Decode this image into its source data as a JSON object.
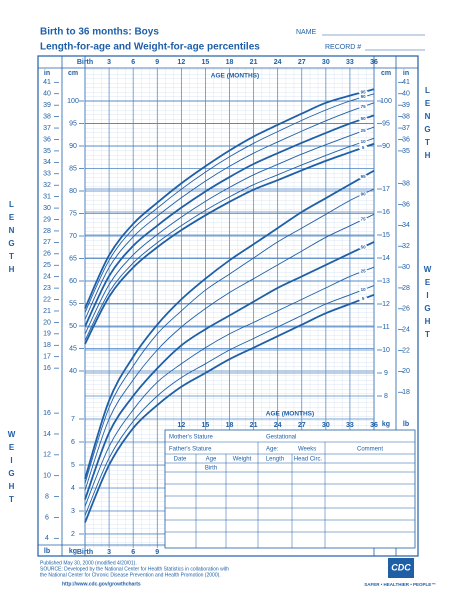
{
  "header": {
    "title": "Birth to 36 months: Boys",
    "subtitle": "Length-for-age and Weight-for-age percentiles",
    "name_label": "NAME",
    "record_label": "RECORD #"
  },
  "chart_data": [
    {
      "type": "line",
      "side_label": "LENGTH",
      "x_label": "AGE (MONTHS)",
      "x": [
        0,
        3,
        6,
        9,
        12,
        15,
        18,
        21,
        24,
        27,
        30,
        33,
        36
      ],
      "xlim": [
        0,
        36
      ],
      "xticks": [
        {
          "value": 0,
          "label": "Birth"
        },
        3,
        6,
        9,
        12,
        15,
        18,
        21,
        24,
        27,
        30,
        33,
        36
      ],
      "axes": [
        {
          "label": "cm",
          "side": "left",
          "lim": [
            40,
            104
          ],
          "ticks": [
            40,
            45,
            50,
            55,
            60,
            65,
            70,
            75,
            80,
            85,
            90,
            95,
            100
          ]
        },
        {
          "label": "in",
          "side": "left",
          "lim": [
            15.75,
            40.94
          ],
          "ticks": [
            16,
            17,
            18,
            19,
            20,
            21,
            22,
            23,
            24,
            25,
            26,
            27,
            28,
            29,
            30,
            31,
            32,
            33,
            34,
            35,
            36,
            37,
            38,
            39,
            40,
            41
          ]
        },
        {
          "label": "cm",
          "side": "right",
          "lim": [
            40,
            104
          ],
          "ticks": [
            90,
            95,
            100
          ]
        },
        {
          "label": "in",
          "side": "right",
          "lim": [
            15.75,
            40.94
          ],
          "ticks": [
            35,
            36,
            37,
            38,
            39,
            40,
            41
          ]
        }
      ],
      "grid": true,
      "series": [
        {
          "name": "5",
          "color": "#1f5fa6",
          "values": [
            46.0,
            56.5,
            63.0,
            67.5,
            71.3,
            74.6,
            77.6,
            80.3,
            82.4,
            84.6,
            86.7,
            88.6,
            90.5
          ]
        },
        {
          "name": "10",
          "color": "#1f5fa6",
          "values": [
            46.8,
            57.5,
            64.0,
            68.5,
            72.3,
            75.7,
            78.7,
            81.4,
            83.6,
            85.8,
            87.9,
            89.9,
            91.7
          ]
        },
        {
          "name": "25",
          "color": "#1f5fa6",
          "values": [
            48.2,
            59.2,
            65.8,
            70.3,
            74.2,
            77.7,
            80.8,
            83.6,
            85.9,
            88.2,
            90.3,
            92.3,
            94.2
          ]
        },
        {
          "name": "50",
          "color": "#1f5fa6",
          "values": [
            49.9,
            61.1,
            67.8,
            72.3,
            76.3,
            79.9,
            83.1,
            86.0,
            88.4,
            90.7,
            92.9,
            95.0,
            96.8
          ]
        },
        {
          "name": "75",
          "color": "#1f5fa6",
          "values": [
            51.5,
            63.0,
            69.8,
            74.4,
            78.5,
            82.2,
            85.5,
            88.4,
            90.9,
            93.3,
            95.6,
            97.7,
            99.6
          ]
        },
        {
          "name": "90",
          "color": "#1f5fa6",
          "values": [
            53.0,
            64.6,
            71.6,
            76.2,
            80.4,
            84.2,
            87.6,
            90.6,
            93.2,
            95.7,
            98.0,
            100.0,
            101.6
          ]
        },
        {
          "name": "95",
          "color": "#1f5fa6",
          "values": [
            53.9,
            65.7,
            72.7,
            77.4,
            81.7,
            85.5,
            89.0,
            92.1,
            94.7,
            97.2,
            99.6,
            101.2,
            102.6
          ]
        }
      ]
    },
    {
      "type": "line",
      "side_label": "WEIGHT",
      "x_label": "AGE (MONTHS)",
      "x": [
        0,
        3,
        6,
        9,
        12,
        15,
        18,
        21,
        24,
        27,
        30,
        33,
        36
      ],
      "xlim": [
        0,
        36
      ],
      "xticks": [
        {
          "value": 0,
          "label": "Birth"
        },
        3,
        6,
        9,
        12,
        15,
        18,
        21,
        24,
        27,
        30,
        33,
        36
      ],
      "axes": [
        {
          "label": "kg",
          "side": "left",
          "lim": [
            1.5,
            18.5
          ],
          "ticks": [
            2,
            3,
            4,
            5,
            6,
            7
          ]
        },
        {
          "label": "lb",
          "side": "left",
          "lim": [
            3.31,
            40.79
          ],
          "ticks": [
            4,
            6,
            8,
            10,
            12,
            14,
            16
          ]
        },
        {
          "label": "kg",
          "side": "right",
          "lim": [
            1.5,
            18.5
          ],
          "ticks": [
            8,
            9,
            10,
            11,
            12,
            13,
            14,
            15,
            16,
            17
          ]
        },
        {
          "label": "lb",
          "side": "right",
          "lim": [
            3.31,
            40.79
          ],
          "ticks": [
            18,
            20,
            22,
            24,
            26,
            28,
            30,
            32,
            34,
            36,
            38
          ]
        }
      ],
      "grid": true,
      "series": [
        {
          "name": "5",
          "color": "#1f5fa6",
          "values": [
            2.5,
            5.0,
            6.6,
            7.6,
            8.4,
            9.0,
            9.6,
            10.1,
            10.6,
            11.1,
            11.6,
            12.0,
            12.4
          ]
        },
        {
          "name": "10",
          "color": "#1f5fa6",
          "values": [
            2.8,
            5.3,
            6.9,
            8.0,
            8.8,
            9.4,
            10.0,
            10.5,
            11.0,
            11.5,
            12.0,
            12.4,
            12.8
          ]
        },
        {
          "name": "25",
          "color": "#1f5fa6",
          "values": [
            3.2,
            5.8,
            7.4,
            8.6,
            9.4,
            10.1,
            10.7,
            11.2,
            11.7,
            12.2,
            12.7,
            13.2,
            13.6
          ]
        },
        {
          "name": "50",
          "color": "#1f5fa6",
          "values": [
            3.5,
            6.4,
            8.0,
            9.2,
            10.2,
            10.9,
            11.5,
            12.1,
            12.7,
            13.2,
            13.7,
            14.2,
            14.7
          ]
        },
        {
          "name": "75",
          "color": "#1f5fa6",
          "values": [
            3.9,
            7.0,
            8.7,
            10.0,
            11.0,
            11.8,
            12.5,
            13.1,
            13.7,
            14.3,
            14.9,
            15.4,
            15.9
          ]
        },
        {
          "name": "90",
          "color": "#1f5fa6",
          "values": [
            4.2,
            7.5,
            9.3,
            10.7,
            11.7,
            12.6,
            13.3,
            14.0,
            14.7,
            15.3,
            15.9,
            16.5,
            17.0
          ]
        },
        {
          "name": "95",
          "color": "#1f5fa6",
          "values": [
            4.4,
            7.8,
            9.7,
            11.1,
            12.2,
            13.1,
            13.9,
            14.6,
            15.3,
            16.0,
            16.6,
            17.2,
            17.8
          ]
        }
      ]
    }
  ],
  "form": {
    "mother": "Mother's Stature",
    "father": "Father's Stature",
    "gestational": "Gestational",
    "age": "Age:",
    "weeks": "Weeks",
    "comment": "Comment",
    "columns": [
      "Date",
      "Age",
      "Weight",
      "Length",
      "Head Circ."
    ],
    "birth": "Birth"
  },
  "footer": {
    "lines": [
      "Published May 30, 2000 (modified 4/20/01).",
      "SOURCE: Developed by the National Center for Health Statistics in collaboration with",
      "the National Center for Chronic Disease Prevention and Health Promotion (2000).",
      "http://www.cdc.gov/growthcharts"
    ],
    "logo": "CDC",
    "slogan": "SAFER • HEALTHIER • PEOPLE™"
  }
}
